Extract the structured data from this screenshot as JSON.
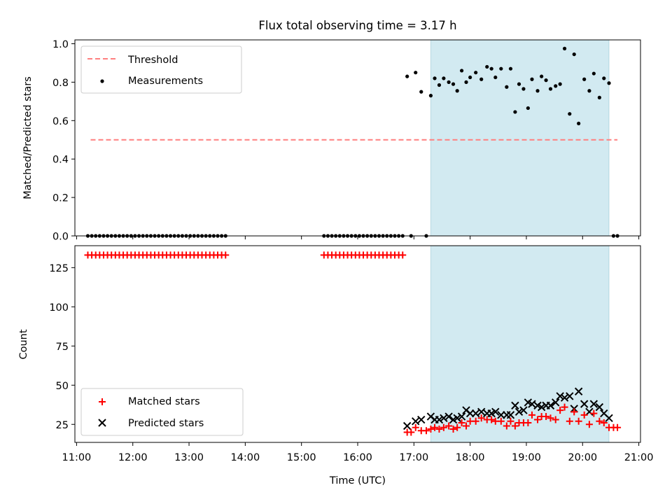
{
  "title": "Flux total observing time = 3.17 h",
  "chart_data": [
    {
      "type": "scatter",
      "panel": "top",
      "ylabel": "Matched/Predicted stars",
      "ylim": [
        0.0,
        1.02
      ],
      "yticks": [
        "0.0",
        "0.2",
        "0.4",
        "0.6",
        "0.8",
        "1.0"
      ],
      "xlim": [
        10.97,
        21.03
      ],
      "threshold": {
        "name": "Threshold",
        "value": 0.5,
        "x_start": 11.25,
        "x_end": 20.62,
        "color": "#ff7f7f"
      },
      "shaded_interval": {
        "x_start": 17.3,
        "x_end": 20.47,
        "color": "#add8e6"
      },
      "legend_position": "upper left",
      "series": [
        {
          "name": "Measurements",
          "color": "#000000",
          "points": [
            [
              11.2,
              0
            ],
            [
              11.27,
              0
            ],
            [
              11.34,
              0
            ],
            [
              11.41,
              0
            ],
            [
              11.48,
              0
            ],
            [
              11.55,
              0
            ],
            [
              11.62,
              0
            ],
            [
              11.69,
              0
            ],
            [
              11.76,
              0
            ],
            [
              11.83,
              0
            ],
            [
              11.9,
              0
            ],
            [
              11.97,
              0
            ],
            [
              12.04,
              0
            ],
            [
              12.11,
              0
            ],
            [
              12.18,
              0
            ],
            [
              12.25,
              0
            ],
            [
              12.32,
              0
            ],
            [
              12.39,
              0
            ],
            [
              12.46,
              0
            ],
            [
              12.53,
              0
            ],
            [
              12.6,
              0
            ],
            [
              12.67,
              0
            ],
            [
              12.74,
              0
            ],
            [
              12.81,
              0
            ],
            [
              12.88,
              0
            ],
            [
              12.95,
              0
            ],
            [
              13.02,
              0
            ],
            [
              13.09,
              0
            ],
            [
              13.16,
              0
            ],
            [
              13.23,
              0
            ],
            [
              13.3,
              0
            ],
            [
              13.37,
              0
            ],
            [
              13.44,
              0
            ],
            [
              13.51,
              0
            ],
            [
              13.58,
              0
            ],
            [
              13.65,
              0
            ],
            [
              15.4,
              0
            ],
            [
              15.47,
              0
            ],
            [
              15.54,
              0
            ],
            [
              15.61,
              0
            ],
            [
              15.68,
              0
            ],
            [
              15.75,
              0
            ],
            [
              15.82,
              0
            ],
            [
              15.89,
              0
            ],
            [
              15.96,
              0
            ],
            [
              16.03,
              0
            ],
            [
              16.1,
              0
            ],
            [
              16.17,
              0
            ],
            [
              16.24,
              0
            ],
            [
              16.31,
              0
            ],
            [
              16.38,
              0
            ],
            [
              16.45,
              0
            ],
            [
              16.52,
              0
            ],
            [
              16.59,
              0
            ],
            [
              16.66,
              0
            ],
            [
              16.73,
              0
            ],
            [
              16.8,
              0
            ],
            [
              16.95,
              0
            ],
            [
              17.22,
              0
            ],
            [
              16.88,
              0.83
            ],
            [
              17.03,
              0.85
            ],
            [
              17.13,
              0.75
            ],
            [
              17.3,
              0.73
            ],
            [
              17.37,
              0.82
            ],
            [
              17.45,
              0.785
            ],
            [
              17.53,
              0.82
            ],
            [
              17.62,
              0.8
            ],
            [
              17.7,
              0.79
            ],
            [
              17.77,
              0.755
            ],
            [
              17.85,
              0.86
            ],
            [
              17.93,
              0.8
            ],
            [
              18.0,
              0.825
            ],
            [
              18.1,
              0.85
            ],
            [
              18.2,
              0.815
            ],
            [
              18.3,
              0.88
            ],
            [
              18.38,
              0.87
            ],
            [
              18.45,
              0.825
            ],
            [
              18.55,
              0.87
            ],
            [
              18.65,
              0.775
            ],
            [
              18.72,
              0.87
            ],
            [
              18.8,
              0.645
            ],
            [
              18.87,
              0.79
            ],
            [
              18.95,
              0.765
            ],
            [
              19.03,
              0.665
            ],
            [
              19.1,
              0.815
            ],
            [
              19.2,
              0.755
            ],
            [
              19.27,
              0.83
            ],
            [
              19.35,
              0.81
            ],
            [
              19.43,
              0.765
            ],
            [
              19.52,
              0.78
            ],
            [
              19.6,
              0.79
            ],
            [
              19.68,
              0.975
            ],
            [
              19.77,
              0.635
            ],
            [
              19.85,
              0.945
            ],
            [
              19.93,
              0.585
            ],
            [
              20.03,
              0.815
            ],
            [
              20.12,
              0.755
            ],
            [
              20.2,
              0.845
            ],
            [
              20.3,
              0.72
            ],
            [
              20.38,
              0.82
            ],
            [
              20.47,
              0.795
            ],
            [
              20.55,
              0
            ],
            [
              20.62,
              0
            ]
          ]
        }
      ]
    },
    {
      "type": "scatter",
      "panel": "bottom",
      "xlabel": "Time (UTC)",
      "ylabel": "Count",
      "ylim": [
        13.5,
        139
      ],
      "yticks": [
        "25",
        "50",
        "75",
        "100",
        "125"
      ],
      "xlim": [
        10.97,
        21.03
      ],
      "xticks": [
        "11:00",
        "12:00",
        "13:00",
        "14:00",
        "15:00",
        "16:00",
        "17:00",
        "18:00",
        "19:00",
        "20:00",
        "21:00"
      ],
      "shaded_interval": {
        "x_start": 17.3,
        "x_end": 20.47,
        "color": "#add8e6"
      },
      "legend_position": "lower left",
      "series": [
        {
          "name": "Matched stars",
          "color": "#ff0000",
          "marker": "plus",
          "points": [
            [
              11.2,
              133
            ],
            [
              11.27,
              133
            ],
            [
              11.34,
              133
            ],
            [
              11.41,
              133
            ],
            [
              11.48,
              133
            ],
            [
              11.55,
              133
            ],
            [
              11.62,
              133
            ],
            [
              11.69,
              133
            ],
            [
              11.76,
              133
            ],
            [
              11.83,
              133
            ],
            [
              11.9,
              133
            ],
            [
              11.97,
              133
            ],
            [
              12.04,
              133
            ],
            [
              12.11,
              133
            ],
            [
              12.18,
              133
            ],
            [
              12.25,
              133
            ],
            [
              12.32,
              133
            ],
            [
              12.39,
              133
            ],
            [
              12.46,
              133
            ],
            [
              12.53,
              133
            ],
            [
              12.6,
              133
            ],
            [
              12.67,
              133
            ],
            [
              12.74,
              133
            ],
            [
              12.81,
              133
            ],
            [
              12.88,
              133
            ],
            [
              12.95,
              133
            ],
            [
              13.02,
              133
            ],
            [
              13.09,
              133
            ],
            [
              13.16,
              133
            ],
            [
              13.23,
              133
            ],
            [
              13.3,
              133
            ],
            [
              13.37,
              133
            ],
            [
              13.44,
              133
            ],
            [
              13.51,
              133
            ],
            [
              13.58,
              133
            ],
            [
              13.65,
              133
            ],
            [
              15.4,
              133
            ],
            [
              15.47,
              133
            ],
            [
              15.54,
              133
            ],
            [
              15.61,
              133
            ],
            [
              15.68,
              133
            ],
            [
              15.75,
              133
            ],
            [
              15.82,
              133
            ],
            [
              15.89,
              133
            ],
            [
              15.96,
              133
            ],
            [
              16.03,
              133
            ],
            [
              16.1,
              133
            ],
            [
              16.17,
              133
            ],
            [
              16.24,
              133
            ],
            [
              16.31,
              133
            ],
            [
              16.38,
              133
            ],
            [
              16.45,
              133
            ],
            [
              16.52,
              133
            ],
            [
              16.59,
              133
            ],
            [
              16.66,
              133
            ],
            [
              16.73,
              133
            ],
            [
              16.8,
              133
            ],
            [
              16.88,
              20
            ],
            [
              16.95,
              20
            ],
            [
              17.03,
              23
            ],
            [
              17.13,
              21
            ],
            [
              17.22,
              21
            ],
            [
              17.3,
              22
            ],
            [
              17.37,
              23
            ],
            [
              17.45,
              22
            ],
            [
              17.53,
              23
            ],
            [
              17.62,
              24
            ],
            [
              17.7,
              22
            ],
            [
              17.77,
              23
            ],
            [
              17.85,
              26
            ],
            [
              17.93,
              24
            ],
            [
              18.0,
              27
            ],
            [
              18.1,
              27
            ],
            [
              18.2,
              29
            ],
            [
              18.3,
              28
            ],
            [
              18.38,
              28
            ],
            [
              18.45,
              27
            ],
            [
              18.55,
              27
            ],
            [
              18.65,
              24
            ],
            [
              18.72,
              27
            ],
            [
              18.8,
              24
            ],
            [
              18.87,
              26
            ],
            [
              18.95,
              26
            ],
            [
              19.03,
              26
            ],
            [
              19.1,
              31
            ],
            [
              19.2,
              28
            ],
            [
              19.27,
              30
            ],
            [
              19.35,
              30
            ],
            [
              19.43,
              29
            ],
            [
              19.52,
              28
            ],
            [
              19.6,
              34
            ],
            [
              19.68,
              36
            ],
            [
              19.77,
              27
            ],
            [
              19.85,
              33
            ],
            [
              19.93,
              27
            ],
            [
              20.03,
              31
            ],
            [
              20.12,
              25
            ],
            [
              20.2,
              32
            ],
            [
              20.3,
              27
            ],
            [
              20.38,
              26
            ],
            [
              20.47,
              23
            ],
            [
              20.55,
              23
            ],
            [
              20.62,
              23
            ]
          ]
        },
        {
          "name": "Predicted stars",
          "color": "#000000",
          "marker": "x",
          "points": [
            [
              16.88,
              24
            ],
            [
              17.03,
              27
            ],
            [
              17.13,
              28
            ],
            [
              17.3,
              30
            ],
            [
              17.37,
              28
            ],
            [
              17.45,
              28
            ],
            [
              17.53,
              29
            ],
            [
              17.62,
              30
            ],
            [
              17.7,
              28
            ],
            [
              17.77,
              29
            ],
            [
              17.85,
              30
            ],
            [
              17.93,
              34
            ],
            [
              18.0,
              32
            ],
            [
              18.1,
              32
            ],
            [
              18.2,
              33
            ],
            [
              18.3,
              32
            ],
            [
              18.38,
              32
            ],
            [
              18.45,
              33
            ],
            [
              18.55,
              31
            ],
            [
              18.65,
              31
            ],
            [
              18.72,
              31
            ],
            [
              18.8,
              37
            ],
            [
              18.87,
              33
            ],
            [
              18.95,
              34
            ],
            [
              19.03,
              39
            ],
            [
              19.1,
              38
            ],
            [
              19.2,
              37
            ],
            [
              19.27,
              36
            ],
            [
              19.35,
              37
            ],
            [
              19.43,
              37
            ],
            [
              19.52,
              39
            ],
            [
              19.6,
              43
            ],
            [
              19.68,
              42
            ],
            [
              19.77,
              43
            ],
            [
              19.85,
              35
            ],
            [
              19.93,
              46
            ],
            [
              20.03,
              38
            ],
            [
              20.12,
              33
            ],
            [
              20.2,
              38
            ],
            [
              20.3,
              36
            ],
            [
              20.38,
              32
            ],
            [
              20.47,
              29
            ]
          ]
        }
      ]
    }
  ]
}
